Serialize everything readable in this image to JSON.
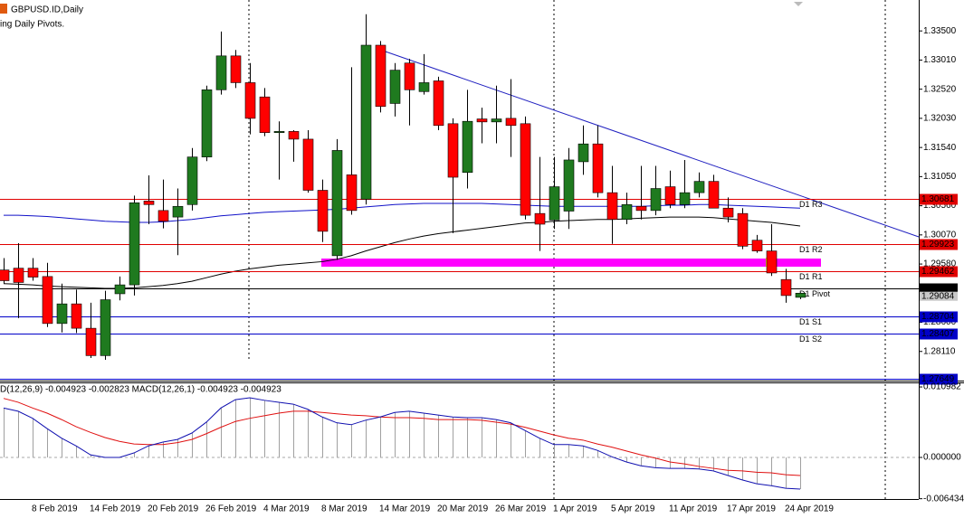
{
  "chart_data": [
    {
      "type": "candlestick",
      "title": "GBPUSD.ID,Daily",
      "subtitle": "ing Daily Pivots.",
      "categories": [
        null,
        null,
        "8 Feb 2019",
        null,
        null,
        null,
        "14 Feb 2019",
        null,
        null,
        null,
        "20 Feb 2019",
        null,
        null,
        null,
        "26 Feb 2019",
        null,
        null,
        null,
        "4 Mar 2019",
        null,
        null,
        null,
        "8 Mar 2019",
        null,
        null,
        null,
        "14 Mar 2019",
        null,
        null,
        null,
        "20 Mar 2019",
        null,
        null,
        null,
        "26 Mar 2019",
        null,
        null,
        null,
        "1 Apr 2019",
        null,
        null,
        null,
        "5 Apr 2019",
        null,
        null,
        null,
        "11 Apr 2019",
        null,
        null,
        null,
        "17 Apr 2019",
        null,
        null,
        null,
        "24 Apr 2019",
        null
      ],
      "open": [
        1.2948,
        1.2951,
        1.2951,
        1.2937,
        1.2858,
        1.2891,
        1.285,
        1.2804,
        1.2908,
        1.2923,
        1.3064,
        1.3048,
        1.3037,
        1.3058,
        1.3138,
        1.3251,
        1.3308,
        1.3263,
        1.3239,
        1.3179,
        1.3181,
        1.3168,
        1.3082,
        1.2972,
        1.3108,
        1.3067,
        1.3326,
        1.3228,
        1.3296,
        1.3248,
        1.3266,
        1.3194,
        1.3112,
        1.3202,
        1.3197,
        1.3203,
        1.3194,
        1.3043,
        1.3032,
        1.3047,
        1.313,
        1.316,
        1.3078,
        1.3033,
        1.3055,
        1.3048,
        1.3088,
        1.3058,
        1.3078,
        1.3097,
        1.3052,
        1.3043,
        1.2998,
        1.298,
        1.2932,
        1.2902
      ],
      "high": [
        1.2968,
        1.2993,
        1.2968,
        1.296,
        1.2925,
        1.2915,
        1.2893,
        1.2913,
        1.2937,
        1.3073,
        1.3107,
        1.31,
        1.3085,
        1.3153,
        1.3258,
        1.3349,
        1.3318,
        1.3296,
        1.3254,
        1.3198,
        1.3183,
        1.3183,
        1.31,
        1.3168,
        1.3289,
        1.3378,
        1.3333,
        1.3296,
        1.3303,
        1.3311,
        1.3273,
        1.3203,
        1.3251,
        1.3221,
        1.3258,
        1.3269,
        1.3206,
        1.3138,
        1.3138,
        1.3153,
        1.3191,
        1.3191,
        1.3123,
        1.3078,
        1.3123,
        1.3123,
        1.3115,
        1.3133,
        1.3112,
        1.3108,
        1.307,
        1.3052,
        1.3007,
        1.3025,
        1.295,
        1.291
      ],
      "low": [
        1.2925,
        1.2867,
        1.293,
        1.2852,
        1.2843,
        1.2842,
        1.28,
        1.2797,
        1.2897,
        1.2905,
        1.3025,
        1.3018,
        1.2973,
        1.3048,
        1.3131,
        1.3243,
        1.3254,
        1.3176,
        1.3173,
        1.31,
        1.313,
        1.3078,
        1.2995,
        1.2965,
        1.3041,
        1.3058,
        1.3213,
        1.3206,
        1.3191,
        1.3243,
        1.3183,
        1.301,
        1.3085,
        1.3161,
        1.3161,
        1.3138,
        1.3033,
        1.298,
        1.3017,
        1.3017,
        1.3108,
        1.307,
        1.2992,
        1.3025,
        1.3033,
        1.304,
        1.3052,
        1.3052,
        1.307,
        1.3052,
        1.3028,
        1.2983,
        1.2977,
        1.2938,
        1.2893,
        1.2899
      ],
      "close": [
        1.293,
        1.2927,
        1.2936,
        1.2858,
        1.2891,
        1.285,
        1.2804,
        1.2898,
        1.2923,
        1.3061,
        1.3058,
        1.303,
        1.3055,
        1.3138,
        1.3251,
        1.3308,
        1.3263,
        1.3203,
        1.3179,
        1.3181,
        1.3168,
        1.3082,
        1.3013,
        1.3149,
        1.3048,
        1.3326,
        1.3223,
        1.3284,
        1.3251,
        1.3263,
        1.3191,
        1.3104,
        1.3198,
        1.3197,
        1.3202,
        1.3191,
        1.304,
        1.3025,
        1.3088,
        1.3133,
        1.316,
        1.3078,
        1.3033,
        1.3058,
        1.3048,
        1.3085,
        1.3058,
        1.3078,
        1.3097,
        1.3052,
        1.3037,
        1.2988,
        1.298,
        1.2943,
        1.2905,
        1.2909
      ],
      "up_color": "#1f7a1f",
      "down_color": "#ff0000",
      "overlays": [
        {
          "color": "#1010c8",
          "values": [
            1.304,
            1.304,
            1.3039,
            1.3038,
            1.3036,
            1.3034,
            1.3032,
            1.303,
            1.3029,
            1.3028,
            1.3028,
            1.3029,
            1.3031,
            1.3033,
            1.3036,
            1.3039,
            1.3041,
            1.3043,
            1.3045,
            1.3046,
            1.3047,
            1.3048,
            1.3049,
            1.305,
            1.3052,
            1.3054,
            1.3056,
            1.3058,
            1.3059,
            1.306,
            1.306,
            1.306,
            1.306,
            1.306,
            1.3059,
            1.3058,
            1.3057,
            1.3056,
            1.3055,
            1.3055,
            1.3055,
            1.3055,
            1.3055,
            1.3055,
            1.3055,
            1.3056,
            1.3057,
            1.3057,
            1.3058,
            1.3058,
            1.3057,
            1.3056,
            1.3055,
            1.3054,
            1.3053,
            1.3052
          ]
        },
        {
          "color": "#000000",
          "values": [
            1.2925,
            1.2924,
            1.2923,
            1.2921,
            1.292,
            1.2919,
            1.2918,
            1.2917,
            1.2917,
            1.2918,
            1.292,
            1.2922,
            1.2925,
            1.2929,
            1.2935,
            1.2941,
            1.2946,
            1.295,
            1.2953,
            1.2956,
            1.2958,
            1.296,
            1.2962,
            1.2966,
            1.2972,
            1.298,
            1.2987,
            1.2994,
            1.3,
            1.3005,
            1.3009,
            1.3012,
            1.3015,
            1.3018,
            1.3021,
            1.3024,
            1.3027,
            1.3028,
            1.303,
            1.3031,
            1.3032,
            1.3033,
            1.3033,
            1.3034,
            1.3035,
            1.3036,
            1.3037,
            1.3037,
            1.3037,
            1.3036,
            1.3034,
            1.3032,
            1.303,
            1.3028,
            1.3025,
            1.3022
          ]
        }
      ],
      "levels": [
        {
          "name": "D1 R3",
          "value": 1.30681,
          "color": "#e00000"
        },
        {
          "name": "D1 R2",
          "value": 1.29923,
          "color": "#e00000"
        },
        {
          "name": "D1 R1",
          "value": 1.29462,
          "color": "#e00000"
        },
        {
          "name": "D1 Pivot",
          "value": 1.29165,
          "color": "#000000"
        },
        {
          "name": "D1 S1",
          "value": 1.28704,
          "color": "#0000c8"
        },
        {
          "name": "D1 S2",
          "value": 1.28407,
          "color": "#0000c8"
        },
        {
          "value": 1.27649,
          "color": "#0000c8"
        }
      ],
      "last_price": 1.29084,
      "ylim": [
        1.2762,
        1.3402
      ],
      "yticks": [
        {
          "value": 1.335,
          "label": "1.33500"
        },
        {
          "value": 1.3301,
          "label": "1.33010"
        },
        {
          "value": 1.3252,
          "label": "1.32520"
        },
        {
          "value": 1.3203,
          "label": "1.32030"
        },
        {
          "value": 1.3154,
          "label": "1.31540"
        },
        {
          "value": 1.3105,
          "label": "1.31050"
        },
        {
          "value": 1.3056,
          "label": "1.30560"
        },
        {
          "value": 1.3007,
          "label": "1.30070"
        },
        {
          "value": 1.2958,
          "label": "1.29580"
        },
        {
          "value": 1.286,
          "label": "1.28600"
        },
        {
          "value": 1.2811,
          "label": "1.28110"
        }
      ]
    },
    {
      "type": "macd",
      "title": "D(12,26,9) -0.004923 -0.002823 MACD(12,26,1) -0.004923 -0.004923",
      "series": [
        {
          "kind": "histogram",
          "color": "#a0a0a0",
          "values": [
            0.0077,
            0.0072,
            0.0061,
            0.0045,
            0.003,
            0.0018,
            0.0004,
            0.0,
            0.0,
            0.0007,
            0.0018,
            0.0024,
            0.0028,
            0.0038,
            0.0055,
            0.0077,
            0.009,
            0.0093,
            0.0089,
            0.0086,
            0.0083,
            0.0075,
            0.0063,
            0.0054,
            0.0051,
            0.0058,
            0.0063,
            0.007,
            0.0072,
            0.0069,
            0.0066,
            0.0063,
            0.0062,
            0.0062,
            0.0059,
            0.0054,
            0.0042,
            0.003,
            0.002,
            0.002,
            0.0018,
            0.0011,
            0.0001,
            -0.0007,
            -0.0013,
            -0.0016,
            -0.0017,
            -0.0017,
            -0.0018,
            -0.0021,
            -0.0028,
            -0.0035,
            -0.0041,
            -0.0044,
            -0.0048,
            -0.004923
          ]
        },
        {
          "kind": "line",
          "color": "#e01010",
          "values": [
            0.0092,
            0.0086,
            0.0077,
            0.0069,
            0.0059,
            0.0048,
            0.0039,
            0.0031,
            0.0025,
            0.0021,
            0.002,
            0.002,
            0.0023,
            0.0028,
            0.0037,
            0.0047,
            0.0056,
            0.0061,
            0.0065,
            0.0069,
            0.0072,
            0.0072,
            0.007,
            0.0068,
            0.0066,
            0.0065,
            0.0063,
            0.0062,
            0.0062,
            0.0061,
            0.0059,
            0.0059,
            0.0059,
            0.0058,
            0.0055,
            0.0052,
            0.0047,
            0.0041,
            0.0035,
            0.003,
            0.0027,
            0.0021,
            0.0016,
            0.001,
            0.0004,
            -0.0001,
            -0.0007,
            -0.001,
            -0.0014,
            -0.0017,
            -0.002,
            -0.0021,
            -0.0023,
            -0.0024,
            -0.0027,
            -0.002823
          ]
        },
        {
          "kind": "line",
          "color": "#1010b0",
          "values": [
            0.0077,
            0.0072,
            0.0061,
            0.0045,
            0.003,
            0.0018,
            0.0004,
            0.0,
            0.0,
            0.0007,
            0.0018,
            0.0024,
            0.0028,
            0.0038,
            0.0055,
            0.0077,
            0.009,
            0.0093,
            0.0089,
            0.0086,
            0.0083,
            0.0075,
            0.0063,
            0.0054,
            0.0051,
            0.0058,
            0.0063,
            0.007,
            0.0072,
            0.0069,
            0.0066,
            0.0063,
            0.0062,
            0.0062,
            0.0059,
            0.0054,
            0.0042,
            0.003,
            0.002,
            0.002,
            0.0018,
            0.0011,
            0.0001,
            -0.0007,
            -0.0013,
            -0.0016,
            -0.0017,
            -0.0017,
            -0.0018,
            -0.0021,
            -0.0028,
            -0.0035,
            -0.0041,
            -0.0044,
            -0.0048,
            -0.004923
          ]
        }
      ],
      "ylim": [
        -0.00648,
        0.01155
      ],
      "yticks": [
        0.010982,
        {
          "value": 0,
          "label": "0.000000"
        },
        -0.006434
      ]
    }
  ]
}
